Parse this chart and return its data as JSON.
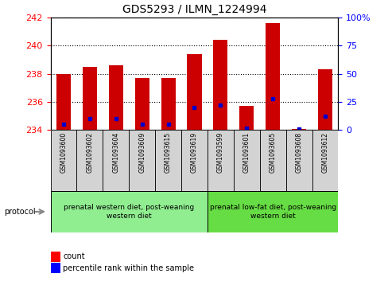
{
  "title": "GDS5293 / ILMN_1224994",
  "samples": [
    "GSM1093600",
    "GSM1093602",
    "GSM1093604",
    "GSM1093609",
    "GSM1093615",
    "GSM1093619",
    "GSM1093599",
    "GSM1093601",
    "GSM1093605",
    "GSM1093608",
    "GSM1093612"
  ],
  "red_values": [
    238.0,
    238.5,
    238.6,
    237.7,
    237.7,
    239.4,
    240.4,
    235.7,
    241.6,
    234.1,
    238.3
  ],
  "blue_values": [
    5,
    10,
    10,
    5,
    5,
    20,
    22,
    2,
    28,
    1,
    12
  ],
  "ymin": 234,
  "ymax": 242,
  "yticks": [
    234,
    236,
    238,
    240,
    242
  ],
  "y2min": 0,
  "y2max": 100,
  "y2ticks": [
    0,
    25,
    50,
    75,
    100
  ],
  "bar_color": "#cc0000",
  "dot_color": "#0000cc",
  "group1_label": "prenatal western diet, post-weaning\nwestern diet",
  "group2_label": "prenatal low-fat diet, post-weaning\nwestern diet",
  "group1_count": 6,
  "group2_count": 5,
  "group1_bg": "#90ee90",
  "group2_bg": "#66dd44",
  "sample_bg": "#d3d3d3",
  "protocol_label": "protocol",
  "legend_count": "count",
  "legend_percentile": "percentile rank within the sample",
  "bar_width": 0.55
}
